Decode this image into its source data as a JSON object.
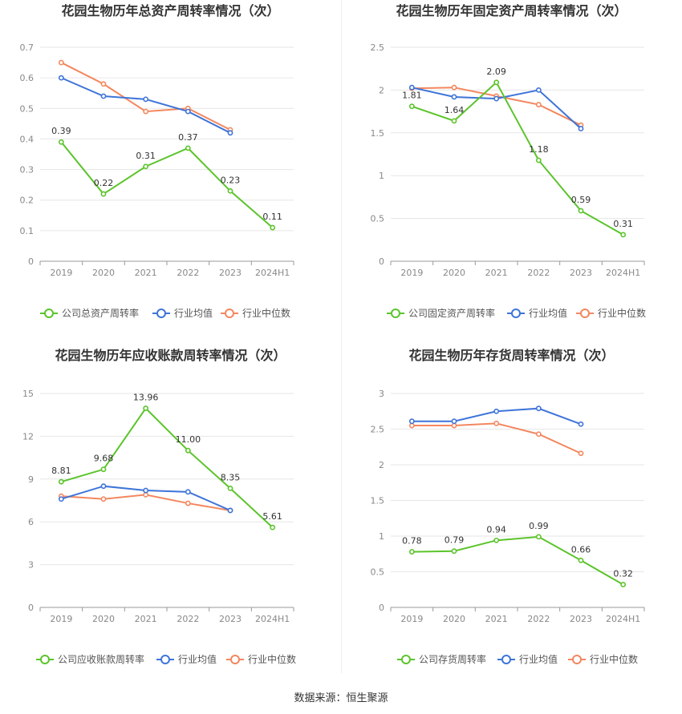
{
  "source_label": "数据来源：恒生聚源",
  "colors": {
    "company": "#5bc42b",
    "avg": "#3e74d9",
    "median": "#f3875f",
    "grid": "#e6e6e6",
    "axis": "#999999"
  },
  "chart_data": [
    {
      "type": "line",
      "title": "花园生物历年总资产周转率情况（次）",
      "categories": [
        "2019",
        "2020",
        "2021",
        "2022",
        "2023",
        "2024H1"
      ],
      "yticks": [
        "0",
        "0.1",
        "0.2",
        "0.3",
        "0.4",
        "0.5",
        "0.6",
        "0.7"
      ],
      "ylim": [
        0,
        0.7
      ],
      "series": [
        {
          "name": "公司总资产周转率",
          "role": "company",
          "values": [
            0.39,
            0.22,
            0.31,
            0.37,
            0.23,
            0.11
          ],
          "labels": [
            "0.39",
            "0.22",
            "0.31",
            "0.37",
            "0.23",
            "0.11"
          ]
        },
        {
          "name": "行业均值",
          "role": "avg",
          "values": [
            0.6,
            0.54,
            0.53,
            0.49,
            0.42,
            null
          ]
        },
        {
          "name": "行业中位数",
          "role": "median",
          "values": [
            0.65,
            0.58,
            0.49,
            0.5,
            0.43,
            null
          ]
        }
      ]
    },
    {
      "type": "line",
      "title": "花园生物历年固定资产周转率情况（次）",
      "categories": [
        "2019",
        "2020",
        "2021",
        "2022",
        "2023",
        "2024H1"
      ],
      "yticks": [
        "0",
        "0.5",
        "1",
        "1.5",
        "2",
        "2.5"
      ],
      "ylim": [
        0,
        2.5
      ],
      "series": [
        {
          "name": "公司固定资产周转率",
          "role": "company",
          "values": [
            1.81,
            1.64,
            2.09,
            1.18,
            0.59,
            0.31
          ],
          "labels": [
            "1.81",
            "1.64",
            "2.09",
            "1.18",
            "0.59",
            "0.31"
          ]
        },
        {
          "name": "行业均值",
          "role": "avg",
          "values": [
            2.03,
            1.92,
            1.9,
            2.0,
            1.55,
            null
          ]
        },
        {
          "name": "行业中位数",
          "role": "median",
          "values": [
            2.02,
            2.03,
            1.93,
            1.83,
            1.59,
            null
          ]
        }
      ]
    },
    {
      "type": "line",
      "title": "花园生物历年应收账款周转率情况（次）",
      "categories": [
        "2019",
        "2020",
        "2021",
        "2022",
        "2023",
        "2024H1"
      ],
      "yticks": [
        "0",
        "3",
        "6",
        "9",
        "12",
        "15"
      ],
      "ylim": [
        0,
        15
      ],
      "series": [
        {
          "name": "公司应收账款周转率",
          "role": "company",
          "values": [
            8.81,
            9.68,
            13.96,
            11.0,
            8.35,
            5.61
          ],
          "labels": [
            "8.81",
            "9.68",
            "13.96",
            "11.00",
            "8.35",
            "5.61"
          ]
        },
        {
          "name": "行业均值",
          "role": "avg",
          "values": [
            7.6,
            8.5,
            8.2,
            8.1,
            6.8,
            null
          ]
        },
        {
          "name": "行业中位数",
          "role": "median",
          "values": [
            7.8,
            7.6,
            7.9,
            7.3,
            6.8,
            null
          ]
        }
      ]
    },
    {
      "type": "line",
      "title": "花园生物历年存货周转率情况（次）",
      "categories": [
        "2019",
        "2020",
        "2021",
        "2022",
        "2023",
        "2024H1"
      ],
      "yticks": [
        "0",
        "0.5",
        "1",
        "1.5",
        "2",
        "2.5",
        "3"
      ],
      "ylim": [
        0,
        3
      ],
      "series": [
        {
          "name": "公司存货周转率",
          "role": "company",
          "values": [
            0.78,
            0.79,
            0.94,
            0.99,
            0.66,
            0.32
          ],
          "labels": [
            "0.78",
            "0.79",
            "0.94",
            "0.99",
            "0.66",
            "0.32"
          ]
        },
        {
          "name": "行业均值",
          "role": "avg",
          "values": [
            2.61,
            2.61,
            2.75,
            2.79,
            2.57,
            null
          ]
        },
        {
          "name": "行业中位数",
          "role": "median",
          "values": [
            2.55,
            2.55,
            2.58,
            2.43,
            2.16,
            null
          ]
        }
      ]
    }
  ]
}
